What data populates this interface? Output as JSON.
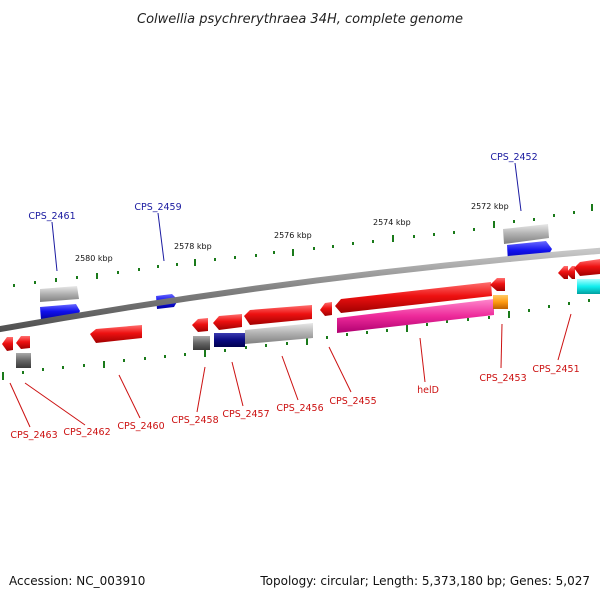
{
  "title": "Colwellia psychrerythraea 34H, complete genome",
  "footer": {
    "accession": "Accession: NC_003910",
    "topology": "Topology: circular; Length: 5,373,180 bp; Genes: 5,027"
  },
  "ticks": [
    "2580 kbp",
    "2578 kbp",
    "2576 kbp",
    "2574 kbp",
    "2572 kbp"
  ],
  "genes_forward": [
    "CPS_2461",
    "CPS_2459",
    "CPS_2452"
  ],
  "genes_reverse": [
    "CPS_2463",
    "CPS_2462",
    "CPS_2460",
    "CPS_2458",
    "CPS_2457",
    "CPS_2456",
    "CPS_2455",
    "helD",
    "CPS_2453",
    "CPS_2451"
  ],
  "colors": {
    "forward_label": "#1a1aa0",
    "reverse_label": "#cc1111",
    "gene_red": "#ee1111",
    "gene_blue": "#1111ee",
    "gene_navy": "#0a0a80",
    "gene_magenta": "#ee2a9a",
    "gene_orange": "#ff9911",
    "gene_cyan": "#11eeee",
    "gene_grey": "#aaaaaa",
    "tick_green": "#1a7a1a",
    "backbone": "#808080"
  }
}
